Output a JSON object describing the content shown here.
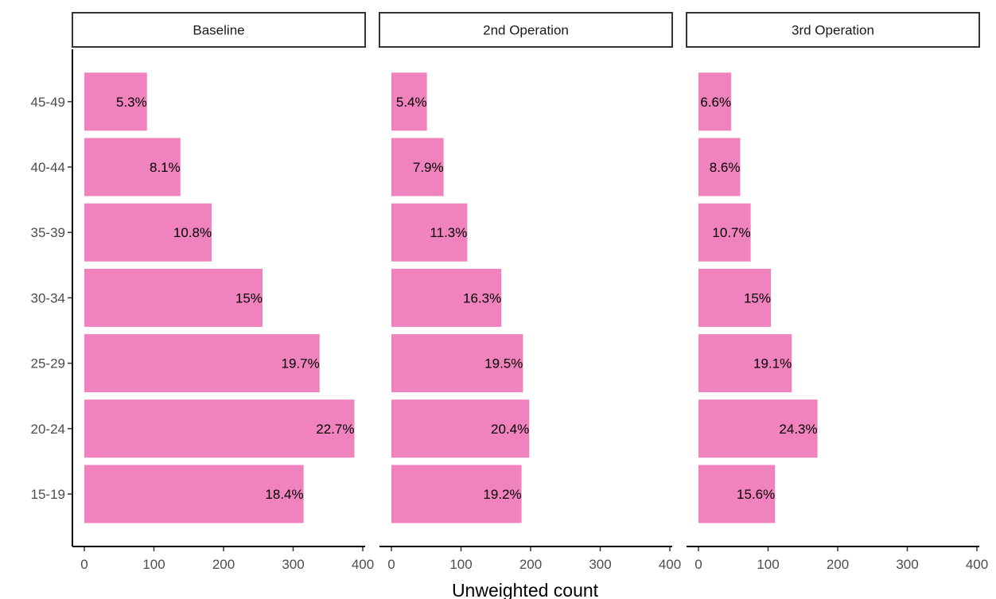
{
  "chart_data": {
    "type": "bar",
    "orientation": "horizontal",
    "xlabel": "Unweighted count",
    "xlim": [
      0,
      400
    ],
    "xticks": [
      0,
      100,
      200,
      300,
      400
    ],
    "categories": [
      "15-19",
      "20-24",
      "25-29",
      "30-34",
      "35-39",
      "40-44",
      "45-49"
    ],
    "bar_color": "#f082be",
    "grid": false,
    "panels": [
      {
        "title": "Baseline",
        "values": [
          315,
          388,
          338,
          256,
          183,
          138,
          90
        ],
        "labels": [
          "18.4%",
          "22.7%",
          "19.7%",
          "15%",
          "10.8%",
          "8.1%",
          "5.3%"
        ]
      },
      {
        "title": "2nd Operation",
        "values": [
          187,
          198,
          189,
          158,
          109,
          75,
          51
        ],
        "labels": [
          "19.2%",
          "20.4%",
          "19.5%",
          "16.3%",
          "11.3%",
          "7.9%",
          "5.4%"
        ]
      },
      {
        "title": "3rd Operation",
        "values": [
          110,
          171,
          134,
          104,
          75,
          60,
          47
        ],
        "labels": [
          "15.6%",
          "24.3%",
          "19.1%",
          "15%",
          "10.7%",
          "8.6%",
          "6.6%"
        ]
      }
    ]
  }
}
